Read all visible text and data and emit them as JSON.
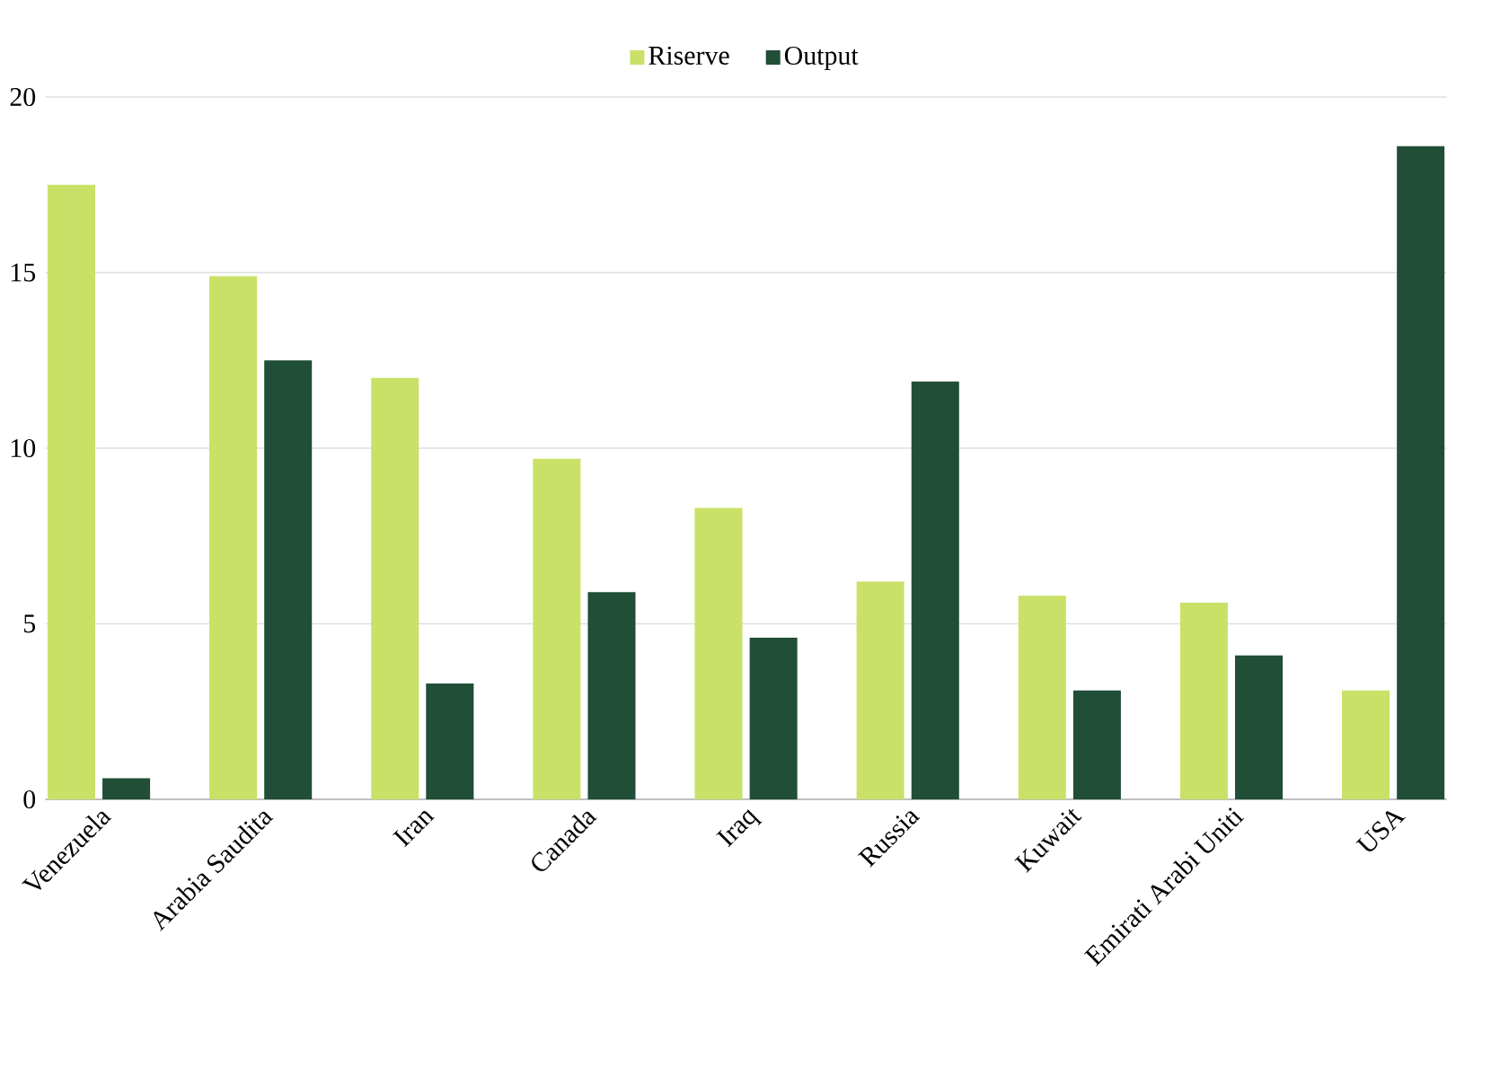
{
  "chart_data": {
    "type": "bar",
    "categories": [
      "Venezuela",
      "Arabia Saudita",
      "Iran",
      "Canada",
      "Iraq",
      "Russia",
      "Kuwait",
      "Emirati Arabi Uniti",
      "USA"
    ],
    "series": [
      {
        "name": "Riserve",
        "color": "#c9e167",
        "values": [
          17.5,
          14.9,
          12.0,
          9.7,
          8.3,
          6.2,
          5.8,
          5.6,
          3.1
        ]
      },
      {
        "name": "Output",
        "color": "#204e37",
        "values": [
          0.6,
          12.5,
          3.3,
          5.9,
          4.6,
          11.9,
          3.1,
          4.1,
          18.6
        ]
      }
    ],
    "ylim": [
      0,
      20
    ],
    "yticks": [
      0,
      5,
      10,
      15,
      20
    ],
    "grid": "y",
    "legend": "top"
  }
}
